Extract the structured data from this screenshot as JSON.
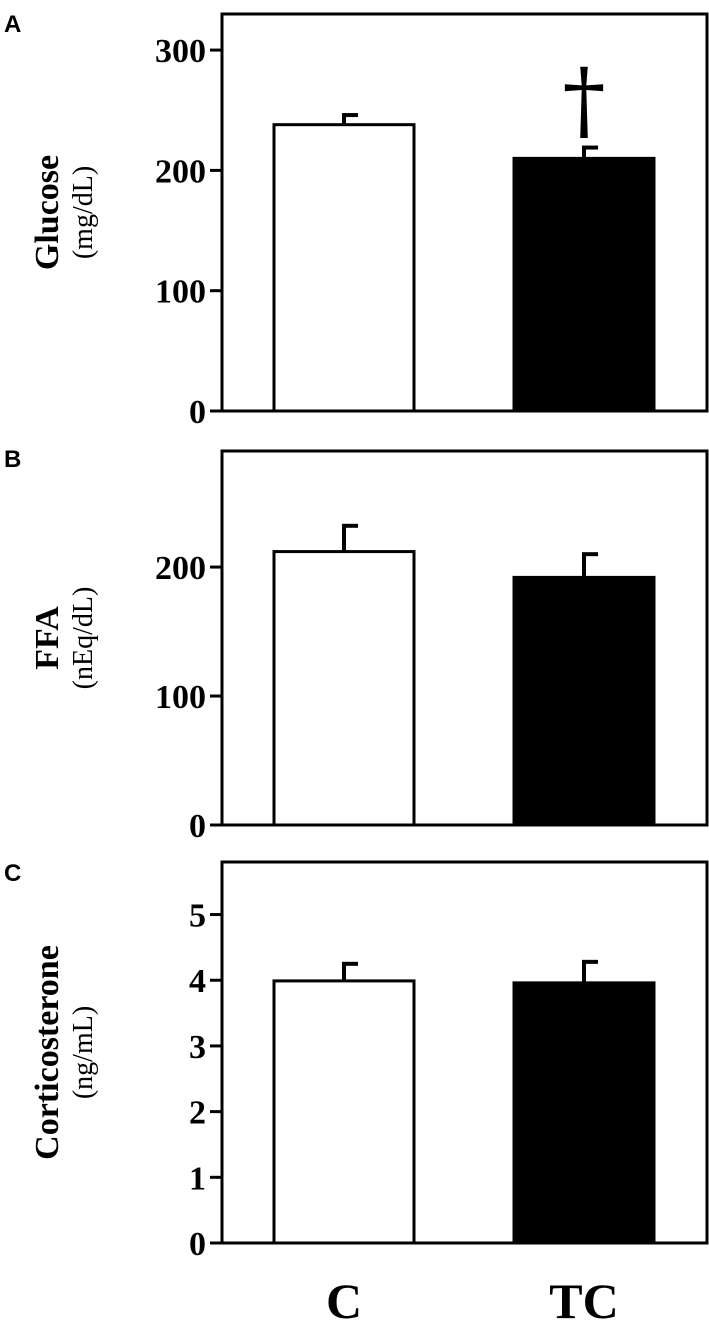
{
  "chart_data": [
    {
      "type": "bar",
      "panel_label": "A",
      "ylabel": "Glucose",
      "yunit": "(mg/dL)",
      "categories": [
        "C",
        "TC"
      ],
      "values": [
        238,
        210
      ],
      "errors": [
        8,
        9
      ],
      "bar_colors": [
        "#ffffff",
        "#000000"
      ],
      "ylim": [
        0,
        330
      ],
      "yticks": [
        0,
        100,
        200,
        300
      ],
      "annotations": [
        {
          "category": "TC",
          "symbol": "†"
        }
      ]
    },
    {
      "type": "bar",
      "panel_label": "B",
      "ylabel": "FFA",
      "yunit": "(nEq/dL)",
      "categories": [
        "C",
        "TC"
      ],
      "values": [
        212,
        192
      ],
      "errors": [
        20,
        18
      ],
      "bar_colors": [
        "#ffffff",
        "#000000"
      ],
      "ylim": [
        0,
        290
      ],
      "yticks": [
        0,
        100,
        200
      ],
      "annotations": []
    },
    {
      "type": "bar",
      "panel_label": "C",
      "ylabel": "Corticosterone",
      "yunit": "(ng/mL)",
      "categories": [
        "C",
        "TC"
      ],
      "values": [
        3.99,
        3.96
      ],
      "errors": [
        0.26,
        0.32
      ],
      "bar_colors": [
        "#ffffff",
        "#000000"
      ],
      "ylim": [
        0,
        5.8
      ],
      "yticks": [
        0,
        1,
        2,
        3,
        4,
        5
      ],
      "annotations": []
    }
  ],
  "x_axis": {
    "categories": [
      "C",
      "TC"
    ]
  }
}
